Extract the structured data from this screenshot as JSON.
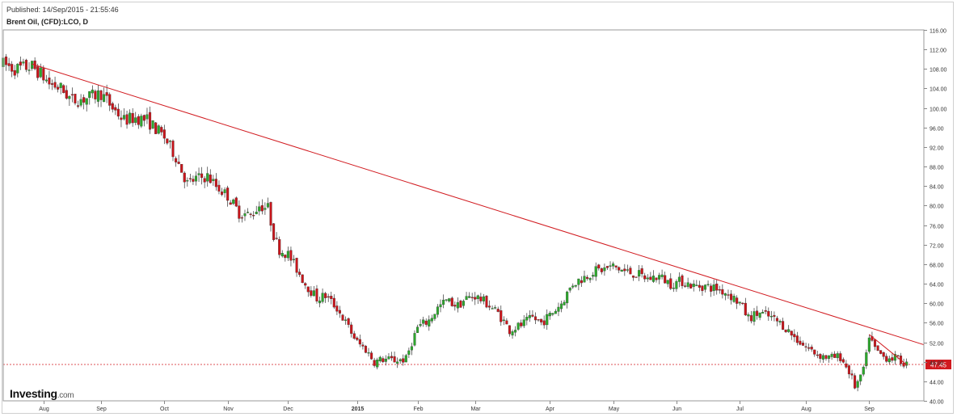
{
  "header": {
    "published": "Published: 14/Sep/2015 - 21:55:46"
  },
  "branding": {
    "name": "Investing",
    "suffix": ".com"
  },
  "chart_data": {
    "type": "candlestick",
    "title": "Brent Oil, (CFD):LCO, D",
    "ylim": [
      40,
      116
    ],
    "y_ticks": [
      40,
      44,
      48,
      52,
      56,
      60,
      64,
      68,
      72,
      76,
      80,
      84,
      88,
      92,
      96,
      100,
      104,
      108,
      112,
      116
    ],
    "y_tick_labels": [
      "40.00",
      "44.00",
      "48.00",
      "52.00",
      "56.00",
      "60.00",
      "64.00",
      "68.00",
      "72.00",
      "76.00",
      "80.00",
      "84.00",
      "88.00",
      "92.00",
      "96.00",
      "100.00",
      "104.00",
      "108.00",
      "112.00",
      "116.00"
    ],
    "x_labels": [
      {
        "label": "Aug",
        "t": 10
      },
      {
        "label": "Sep",
        "t": 30
      },
      {
        "label": "Oct",
        "t": 52
      },
      {
        "label": "Nov",
        "t": 74
      },
      {
        "label": "Dec",
        "t": 95
      },
      {
        "label": "2015",
        "t": 119
      },
      {
        "label": "Feb",
        "t": 140
      },
      {
        "label": "Mar",
        "t": 160
      },
      {
        "label": "Apr",
        "t": 186
      },
      {
        "label": "May",
        "t": 208
      },
      {
        "label": "Jun",
        "t": 230
      },
      {
        "label": "Jul",
        "t": 252
      },
      {
        "label": "Aug",
        "t": 275
      },
      {
        "label": "Sep",
        "t": 297
      }
    ],
    "t_range": [
      -4,
      316
    ],
    "current_price": 47.45,
    "current_price_label": "47.45",
    "colors": {
      "up": "#2ca82c",
      "down": "#c9151b",
      "trend": "#d11a1f",
      "price": "#d11a1f",
      "grid": "#e4e4e4"
    },
    "trendlines": [
      {
        "t1": 6,
        "p1": 109,
        "t2": 316,
        "p2": 51.5
      },
      {
        "t1": 297,
        "p1": 53.6,
        "t2": 310,
        "p2": 47.4
      }
    ],
    "anchors": [
      [
        -4,
        109
      ],
      [
        0,
        108
      ],
      [
        6,
        108.5
      ],
      [
        9,
        107
      ],
      [
        12,
        105
      ],
      [
        16,
        104
      ],
      [
        20,
        101.5
      ],
      [
        25,
        102
      ],
      [
        30,
        103
      ],
      [
        34,
        100
      ],
      [
        38,
        97.5
      ],
      [
        42,
        98
      ],
      [
        46,
        97.5
      ],
      [
        52,
        94
      ],
      [
        56,
        90
      ],
      [
        60,
        84.5
      ],
      [
        63,
        85.5
      ],
      [
        67,
        86
      ],
      [
        70,
        84
      ],
      [
        74,
        82
      ],
      [
        78,
        78.5
      ],
      [
        82,
        78
      ],
      [
        85,
        80
      ],
      [
        88,
        79.5
      ],
      [
        90,
        74
      ],
      [
        92,
        71
      ],
      [
        95,
        70
      ],
      [
        98,
        67
      ],
      [
        101,
        64
      ],
      [
        105,
        61
      ],
      [
        108,
        61.5
      ],
      [
        112,
        59
      ],
      [
        115,
        56
      ],
      [
        119,
        52
      ],
      [
        122,
        50.5
      ],
      [
        125,
        48
      ],
      [
        128,
        48.5
      ],
      [
        132,
        48.3
      ],
      [
        136,
        48.5
      ],
      [
        138,
        52
      ],
      [
        140,
        55
      ],
      [
        144,
        56.5
      ],
      [
        147,
        59
      ],
      [
        150,
        60.5
      ],
      [
        154,
        59.5
      ],
      [
        157,
        61
      ],
      [
        160,
        61.5
      ],
      [
        164,
        60
      ],
      [
        168,
        58
      ],
      [
        172,
        54.5
      ],
      [
        176,
        55.5
      ],
      [
        180,
        57
      ],
      [
        183,
        56
      ],
      [
        186,
        57.5
      ],
      [
        190,
        60
      ],
      [
        194,
        64
      ],
      [
        197,
        65
      ],
      [
        201,
        66.5
      ],
      [
        205,
        67
      ],
      [
        208,
        67.5
      ],
      [
        212,
        66.5
      ],
      [
        216,
        66
      ],
      [
        220,
        65
      ],
      [
        224,
        65.5
      ],
      [
        228,
        64
      ],
      [
        232,
        64.5
      ],
      [
        236,
        63.5
      ],
      [
        240,
        63.5
      ],
      [
        244,
        63
      ],
      [
        248,
        62
      ],
      [
        252,
        60
      ],
      [
        255,
        57
      ],
      [
        259,
        58
      ],
      [
        263,
        57
      ],
      [
        267,
        55.5
      ],
      [
        271,
        53
      ],
      [
        275,
        51
      ],
      [
        279,
        49.5
      ],
      [
        283,
        48.8
      ],
      [
        287,
        49
      ],
      [
        290,
        46
      ],
      [
        292,
        43
      ],
      [
        294,
        44.5
      ],
      [
        296,
        49
      ],
      [
        297,
        53.5
      ],
      [
        299,
        50.5
      ],
      [
        302,
        49
      ],
      [
        306,
        48.8
      ],
      [
        310,
        47.45
      ]
    ],
    "annotations": [
      "47.45"
    ]
  }
}
